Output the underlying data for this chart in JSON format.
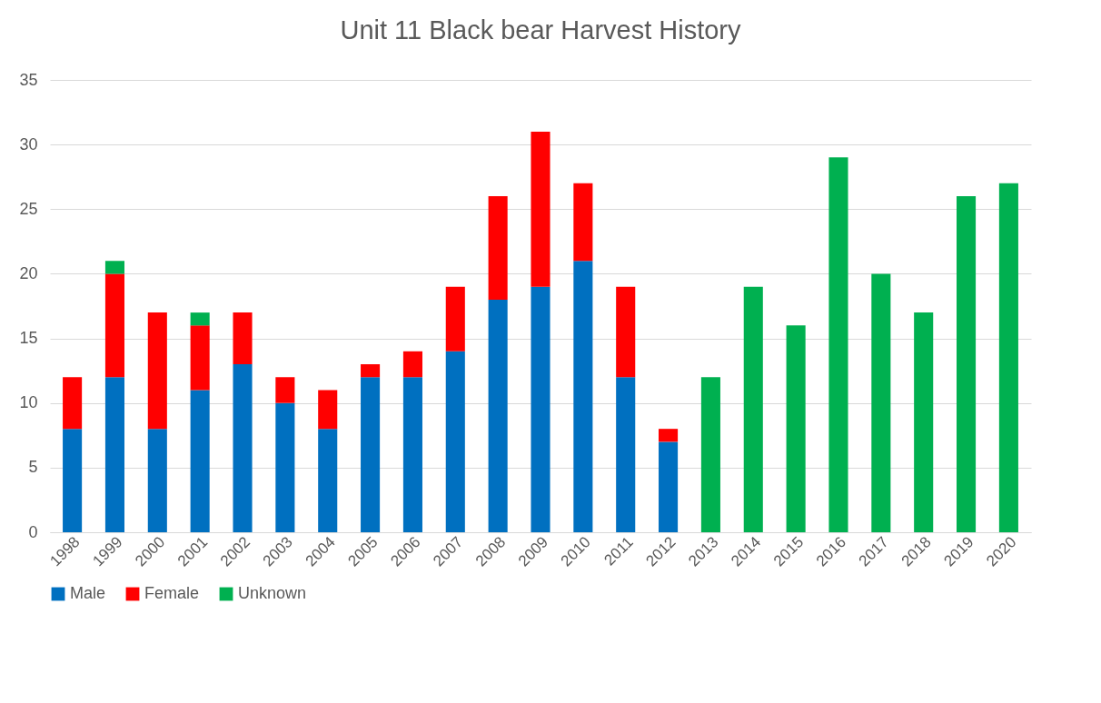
{
  "chart_data": {
    "type": "bar",
    "title": "Unit 11 Black bear Harvest History",
    "stacked": true,
    "categories": [
      "1998",
      "1999",
      "2000",
      "2001",
      "2002",
      "2003",
      "2004",
      "2005",
      "2006",
      "2007",
      "2008",
      "2009",
      "2010",
      "2011",
      "2012",
      "2013",
      "2014",
      "2015",
      "2016",
      "2017",
      "2018",
      "2019",
      "2020"
    ],
    "series": [
      {
        "name": "Male",
        "color": "#0070c0",
        "values": [
          8,
          12,
          8,
          11,
          13,
          10,
          8,
          12,
          12,
          14,
          18,
          19,
          21,
          12,
          7,
          null,
          null,
          null,
          null,
          null,
          null,
          null,
          null
        ]
      },
      {
        "name": "Female",
        "color": "#ff0000",
        "values": [
          4,
          8,
          9,
          5,
          4,
          2,
          3,
          1,
          2,
          5,
          8,
          12,
          6,
          7,
          1,
          null,
          null,
          null,
          null,
          null,
          null,
          null,
          null
        ]
      },
      {
        "name": "Unknown",
        "color": "#00b050",
        "values": [
          null,
          1,
          null,
          1,
          null,
          null,
          null,
          null,
          null,
          null,
          null,
          null,
          null,
          null,
          null,
          12,
          19,
          16,
          29,
          20,
          17,
          26,
          27
        ]
      }
    ],
    "ylim": [
      0,
      35
    ],
    "yticks": [
      0,
      5,
      10,
      15,
      20,
      25,
      30,
      35
    ],
    "grid": "y",
    "legend": "bottom"
  }
}
